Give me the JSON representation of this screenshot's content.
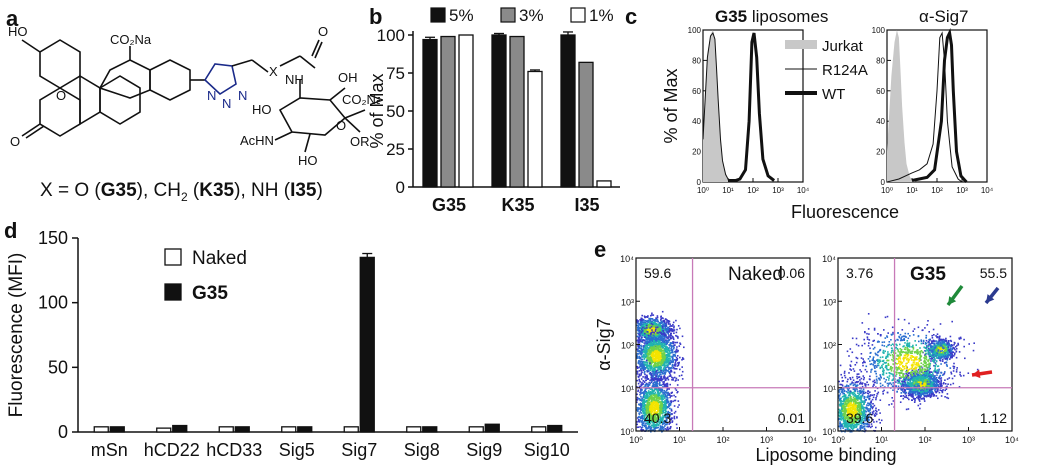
{
  "panel_labels": {
    "a": "a",
    "b": "b",
    "c": "c",
    "d": "d",
    "e": "e"
  },
  "panel_a": {
    "atoms": {
      "ho": "HO",
      "co2na_top": "CO₂Na",
      "o_ring": "O",
      "o_keto": "O",
      "n1": "N",
      "n2": "N",
      "n3": "N",
      "x": "X",
      "o_amide": "O",
      "nh": "NH",
      "oh1": "OH",
      "ho2": "HO",
      "co2na_sugar": "CO₂Na",
      "achn": "AcHN",
      "o_pyran": "O",
      "or": "OR",
      "ho3": "HO"
    },
    "caption_parts": [
      "X = O (",
      "G35",
      "), CH",
      "2",
      " (",
      "K35",
      "), NH (",
      "I35",
      ")"
    ]
  },
  "colors": {
    "black": "#111111",
    "gray": "#8a8a8a",
    "white": "#ffffff",
    "jurkat": "#c8c8c8",
    "grid_pink": "#c77ab8",
    "green_arrow": "#1f8a3a",
    "blue_arrow": "#2b3a8f",
    "red_arrow": "#e02020"
  },
  "chart_data": [
    {
      "id": "b",
      "type": "bar",
      "categories": [
        "G35",
        "K35",
        "I35"
      ],
      "series": [
        {
          "name": "5%",
          "values": [
            97,
            100,
            100
          ],
          "errors": [
            1.5,
            1,
            2
          ],
          "color": "#111111"
        },
        {
          "name": "3%",
          "values": [
            99,
            99,
            82
          ],
          "errors": [
            0,
            0,
            0
          ],
          "color": "#8a8a8a"
        },
        {
          "name": "1%",
          "values": [
            100,
            76,
            4
          ],
          "errors": [
            0,
            1,
            0
          ],
          "color": "#ffffff"
        }
      ],
      "ylabel": "% of Max",
      "ylim": [
        0,
        100
      ],
      "yticks": [
        0,
        25,
        50,
        75,
        100
      ],
      "legend": "top"
    },
    {
      "id": "c",
      "type": "line",
      "xscale": "log",
      "xlim": [
        1,
        10000
      ],
      "xticks": [
        "10⁰",
        "10¹",
        "10²",
        "10³",
        "10⁴"
      ],
      "ylim": [
        0,
        100
      ],
      "yticks": [
        0,
        20,
        40,
        60,
        80,
        100
      ],
      "ylabel": "% of Max",
      "xlabel": "Fluorescence",
      "subplots": [
        {
          "title_bold": "G35",
          "title_rest": " liposomes",
          "series": [
            {
              "name": "Jurkat",
              "style": "filled-gray",
              "x": [
                1,
                1.5,
                2,
                2.5,
                3,
                3.5,
                4,
                5,
                6,
                8,
                10,
                14
              ],
              "y": [
                30,
                85,
                97,
                100,
                95,
                75,
                55,
                30,
                14,
                5,
                1,
                0
              ]
            },
            {
              "name": "R124A",
              "style": "thin",
              "x": [
                1,
                1.5,
                2,
                2.5,
                3,
                3.5,
                4,
                5,
                6,
                8,
                10,
                14,
                20,
                30,
                50,
                70,
                90,
                110,
                140,
                180,
                250,
                400,
                700
              ],
              "y": [
                28,
                82,
                96,
                98,
                94,
                74,
                55,
                28,
                14,
                5,
                2,
                1,
                1,
                2,
                8,
                40,
                90,
                96,
                80,
                45,
                15,
                4,
                1
              ]
            },
            {
              "name": "WT",
              "style": "thick",
              "x": [
                10,
                20,
                30,
                50,
                70,
                90,
                110,
                140,
                180,
                250,
                400,
                700
              ],
              "y": [
                1,
                1,
                2,
                8,
                40,
                92,
                98,
                82,
                45,
                15,
                4,
                1
              ]
            }
          ]
        },
        {
          "title": "α-Sig7",
          "series": [
            {
              "name": "Jurkat",
              "style": "filled-gray",
              "x": [
                1,
                1.5,
                2,
                2.5,
                3,
                3.5,
                4,
                5,
                6,
                8,
                10,
                14
              ],
              "y": [
                20,
                70,
                92,
                100,
                95,
                72,
                50,
                26,
                12,
                4,
                1,
                0
              ]
            },
            {
              "name": "R124A",
              "style": "thin",
              "x": [
                1,
                3,
                10,
                20,
                40,
                70,
                100,
                130,
                160,
                200,
                260,
                400,
                700,
                1000
              ],
              "y": [
                0,
                2,
                6,
                8,
                12,
                25,
                60,
                95,
                98,
                80,
                40,
                10,
                2,
                0
              ]
            },
            {
              "name": "WT",
              "style": "thick",
              "x": [
                10,
                40,
                80,
                150,
                200,
                260,
                320,
                380,
                450,
                600,
                900,
                1500
              ],
              "y": [
                1,
                3,
                8,
                40,
                80,
                95,
                98,
                90,
                60,
                20,
                4,
                0
              ]
            }
          ]
        }
      ],
      "legend": [
        "Jurkat",
        "R124A",
        "WT"
      ]
    },
    {
      "id": "d",
      "type": "bar",
      "categories": [
        "mSn",
        "hCD22",
        "hCD33",
        "Sig5",
        "Sig7",
        "Sig8",
        "Sig9",
        "Sig10"
      ],
      "series": [
        {
          "name": "Naked",
          "values": [
            4,
            3,
            4,
            4,
            4,
            4,
            4,
            4
          ],
          "color": "#ffffff"
        },
        {
          "name": "G35",
          "values": [
            4,
            5,
            4,
            4,
            135,
            4,
            6,
            5
          ],
          "errors": [
            0,
            0,
            0,
            0,
            3,
            0,
            0,
            0
          ],
          "color": "#111111"
        }
      ],
      "ylabel": "Fluorescence (MFI)",
      "ylim": [
        0,
        150
      ],
      "yticks": [
        0,
        50,
        100,
        150
      ],
      "legend": "top-left"
    },
    {
      "id": "e",
      "type": "scatter",
      "xlabel": "Liposome binding",
      "ylabel": "α-Sig7",
      "xscale": "log",
      "yscale": "log",
      "xlim": [
        1,
        10000
      ],
      "ylim": [
        1,
        10000
      ],
      "ticks": [
        "10⁰",
        "10¹",
        "10²",
        "10³",
        "10⁴"
      ],
      "subplots": [
        {
          "title": "Naked",
          "quadrants": {
            "ul": "59.6",
            "ur": "0.06",
            "ll": "40.3",
            "lr": "0.01"
          }
        },
        {
          "title": "G35",
          "quadrants": {
            "ul": "3.76",
            "ur": "55.5",
            "ll": "39.6",
            "lr": "1.12"
          }
        }
      ]
    }
  ]
}
